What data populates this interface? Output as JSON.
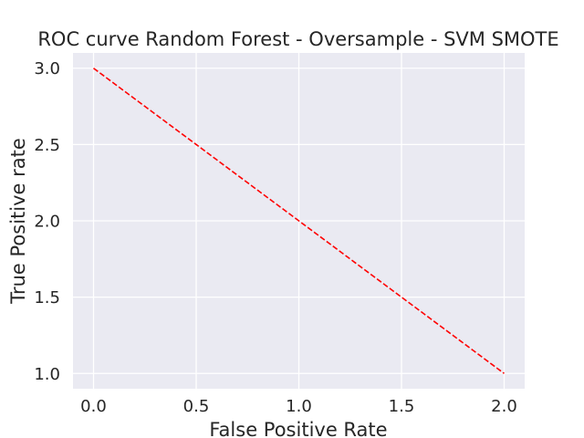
{
  "chart_data": {
    "type": "line",
    "title": "ROC curve Random Forest - Oversample - SVM SMOTE",
    "xlabel": "False Positive Rate",
    "ylabel": "True Positive rate",
    "xlim": [
      -0.1,
      2.1
    ],
    "ylim": [
      0.9,
      3.1
    ],
    "xticks": [
      0.0,
      0.5,
      1.0,
      1.5,
      2.0
    ],
    "xtick_labels": [
      "0.0",
      "0.5",
      "1.0",
      "1.5",
      "2.0"
    ],
    "yticks": [
      1.0,
      1.5,
      2.0,
      2.5,
      3.0
    ],
    "ytick_labels": [
      "1.0",
      "1.5",
      "2.0",
      "2.5",
      "3.0"
    ],
    "grid": true,
    "background_color": "#EAEAF2",
    "grid_color": "#FFFFFF",
    "series": [
      {
        "x": [
          0,
          2
        ],
        "y": [
          3,
          1
        ],
        "color": "#FF0000",
        "line_style": "dashed"
      }
    ]
  }
}
